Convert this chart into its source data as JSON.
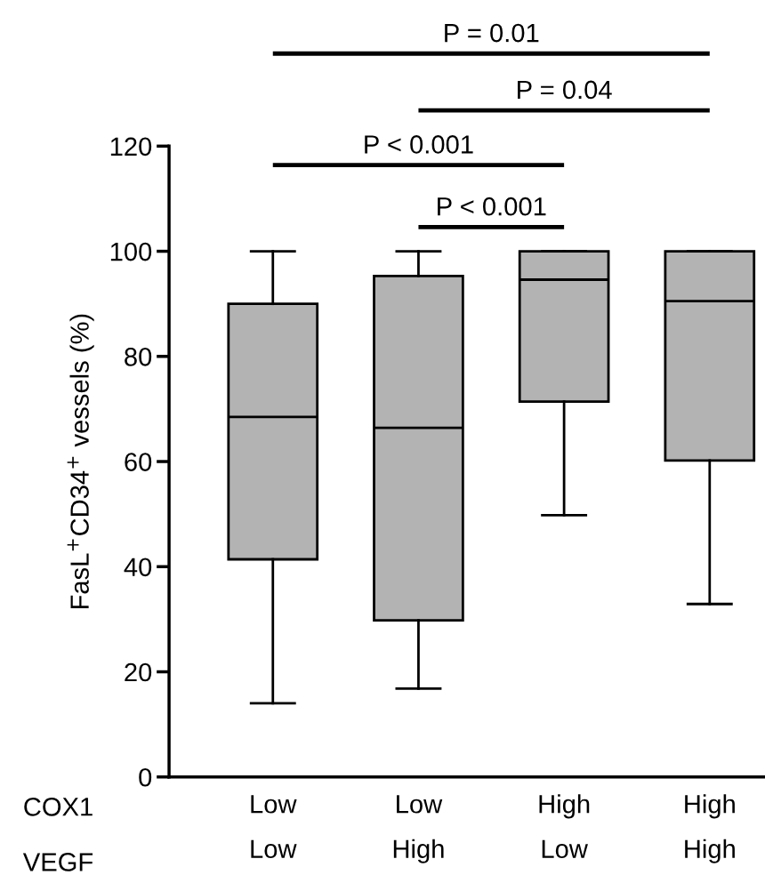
{
  "chart_data": {
    "type": "box",
    "ylabel": "FasL$^{+}$CD34$^{+}$ vessels (%)",
    "categories": [
      "Low\nLow",
      "Low\nHigh",
      "High\nLow",
      "High\nHigh"
    ],
    "boxes": [
      {
        "low": 14,
        "q1": 41.4,
        "median": 68.5,
        "q3": 90,
        "high": 100
      },
      {
        "low": 16.8,
        "q1": 29.8,
        "median": 66.4,
        "q3": 95.3,
        "high": 100
      },
      {
        "low": 49.8,
        "q1": 71.4,
        "median": 94.6,
        "q3": 100,
        "high": 100
      },
      {
        "low": 32.9,
        "q1": 60.2,
        "median": 90.5,
        "q3": 100,
        "high": 100
      }
    ],
    "color": "#b3b3b3",
    "ylim": [
      0,
      120
    ],
    "yticks": [
      0,
      20,
      40,
      60,
      80,
      100,
      120
    ],
    "grid": false,
    "annotations": [
      "P = 0.01",
      "P = 0.04",
      "P < 0.001",
      "P < 0.001",
      "COX1",
      "VEGF"
    ]
  }
}
